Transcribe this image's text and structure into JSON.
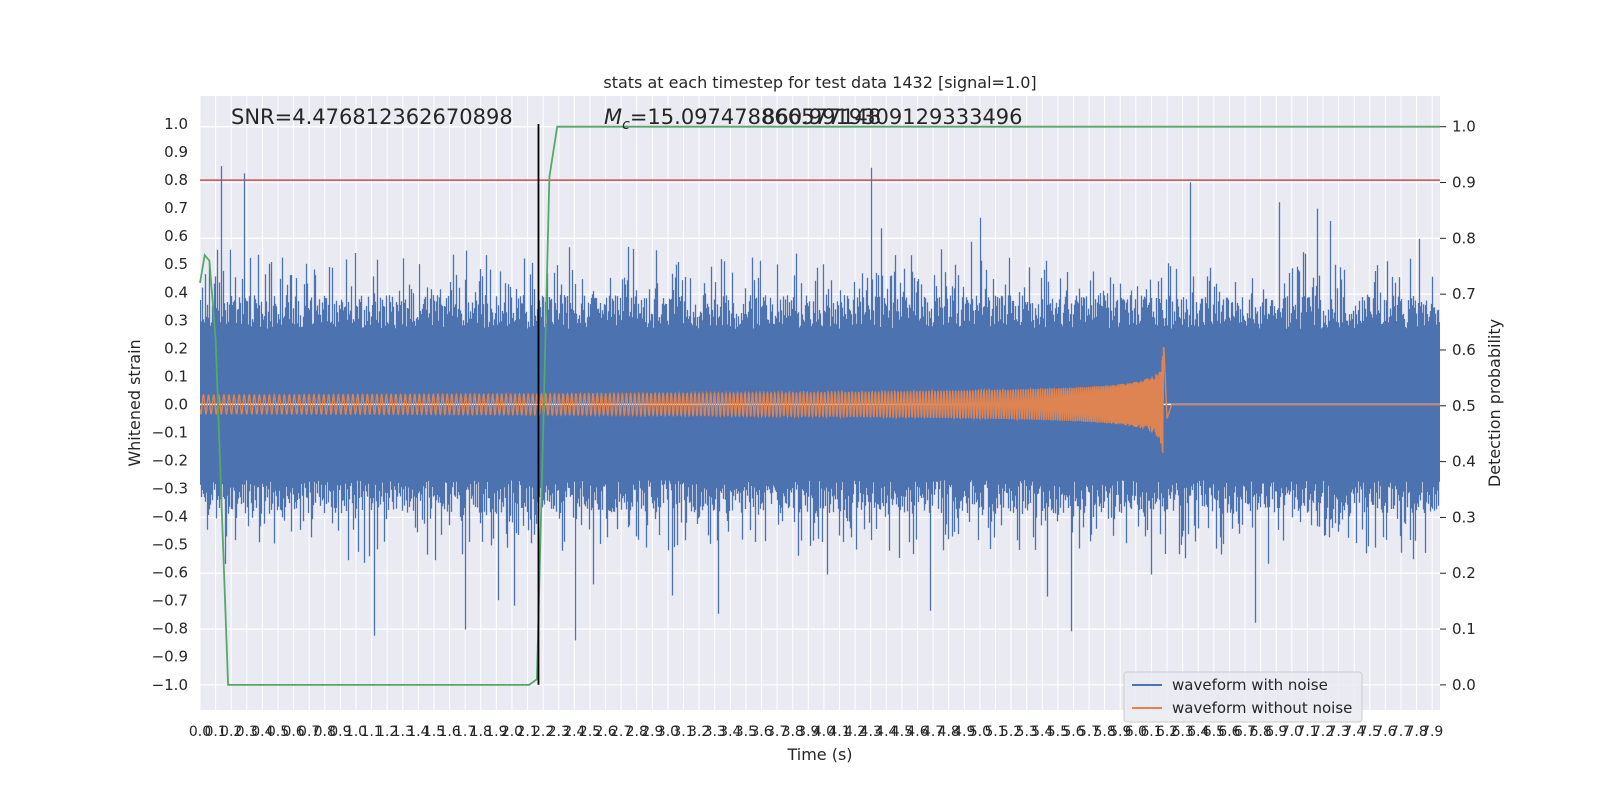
{
  "chart_data": {
    "type": "line",
    "title": "stats at each timestep for test data 1432 [signal=1.0]",
    "xlabel": "Time (s)",
    "ylabel": "Whitened strain",
    "ylabel_right": "Detection probability",
    "xlim": [
      0.0,
      7.95
    ],
    "ylim": [
      -1.09,
      1.1
    ],
    "ylim_right": [
      -0.045,
      1.055
    ],
    "x_ticks": [
      "0.0",
      "0.1",
      "0.2",
      "0.3",
      "0.4",
      "0.5",
      "0.6",
      "0.7",
      "0.8",
      "0.9",
      "1.0",
      "1.1",
      "1.2",
      "1.3",
      "1.4",
      "1.5",
      "1.6",
      "1.7",
      "1.8",
      "1.9",
      "2.0",
      "2.1",
      "2.2",
      "2.3",
      "2.4",
      "2.5",
      "2.6",
      "2.7",
      "2.8",
      "2.9",
      "3.0",
      "3.1",
      "3.2",
      "3.3",
      "3.4",
      "3.5",
      "3.6",
      "3.7",
      "3.8",
      "3.9",
      "4.0",
      "4.1",
      "4.2",
      "4.3",
      "4.4",
      "4.5",
      "4.6",
      "4.7",
      "4.8",
      "4.9",
      "5.0",
      "5.1",
      "5.2",
      "5.3",
      "5.4",
      "5.5",
      "5.6",
      "5.7",
      "5.8",
      "5.9",
      "6.0",
      "6.1",
      "6.2",
      "6.3",
      "6.4",
      "6.5",
      "6.6",
      "6.7",
      "6.8",
      "6.9",
      "7.0",
      "7.1",
      "7.2",
      "7.3",
      "7.4",
      "7.5",
      "7.6",
      "7.7",
      "7.8",
      "7.9"
    ],
    "y_ticks": [
      "1.0",
      "0.9",
      "0.8",
      "0.7",
      "0.6",
      "0.5",
      "0.4",
      "0.3",
      "0.2",
      "0.1",
      "0.0",
      "−0.1",
      "−0.2",
      "−0.3",
      "−0.4",
      "−0.5",
      "−0.6",
      "−0.7",
      "−0.8",
      "−0.9",
      "−1.0"
    ],
    "y_right_ticks": [
      "1.0",
      "0.9",
      "0.8",
      "0.7",
      "0.6",
      "0.5",
      "0.4",
      "0.3",
      "0.2",
      "0.1",
      "0.0"
    ],
    "threshold_line": {
      "y": 0.8,
      "color": "#c44e52"
    },
    "vertical_marker": {
      "x": 2.17,
      "color": "#000000"
    },
    "noisy_waveform": {
      "name": "waveform with noise",
      "color": "#4c72b0",
      "baseline_amplitude": 0.27,
      "peak_envelope": [
        0.45,
        0.85
      ]
    },
    "clean_waveform": {
      "name": "waveform without noise",
      "color": "#dd8452",
      "x_start": 0.0,
      "x_merger": 6.18,
      "peak_amplitude": 0.21
    },
    "detection_probability": {
      "color": "#55a868",
      "x": [
        0.0,
        0.03,
        0.06,
        0.1,
        0.18,
        0.24,
        0.27,
        2.11,
        2.16,
        2.2,
        2.24,
        2.29,
        7.95
      ],
      "y": [
        0.72,
        0.77,
        0.76,
        0.62,
        0.0,
        0.0,
        0.0,
        0.0,
        0.01,
        0.45,
        0.91,
        1.0,
        1.0
      ]
    },
    "annotations": {
      "snr": "SNR=4.476812362670898",
      "mc_prefix": "M",
      "mc_sub": "c",
      "mc_value": "=15.097478866577148",
      "overlap": "860.9919309129333496"
    },
    "legend_position": "lower-right",
    "grid": true,
    "background": "#eaeaf2"
  }
}
